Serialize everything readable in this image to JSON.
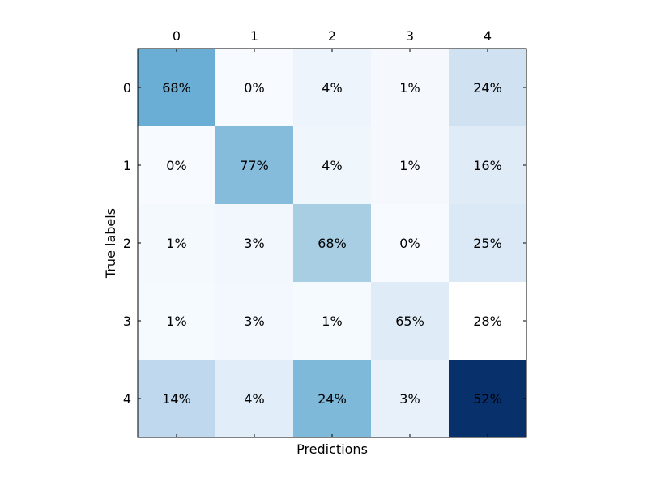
{
  "chart_data": {
    "type": "heatmap",
    "title": "",
    "xlabel": "Predictions",
    "ylabel": "True labels",
    "x_categories": [
      "0",
      "1",
      "2",
      "3",
      "4"
    ],
    "y_categories": [
      "0",
      "1",
      "2",
      "3",
      "4"
    ],
    "x_tick_position": "top",
    "colormap": "Blues",
    "values": [
      [
        68,
        0,
        4,
        1,
        24
      ],
      [
        0,
        77,
        4,
        1,
        16
      ],
      [
        1,
        3,
        68,
        0,
        25
      ],
      [
        1,
        3,
        1,
        65,
        28
      ],
      [
        14,
        4,
        24,
        3,
        52
      ]
    ],
    "cell_labels": [
      [
        "68%",
        "0%",
        "4%",
        "1%",
        "24%"
      ],
      [
        "0%",
        "77%",
        "4%",
        "1%",
        "16%"
      ],
      [
        "1%",
        "3%",
        "68%",
        "0%",
        "25%"
      ],
      [
        "1%",
        "3%",
        "1%",
        "65%",
        "28%"
      ],
      [
        "14%",
        "4%",
        "24%",
        "3%",
        "52%"
      ]
    ],
    "cell_colors": [
      [
        "#6aaed6",
        "#f7fbff",
        "#edf4fc",
        "#f5f9fe",
        "#d0e2f2"
      ],
      [
        "#f7fbff",
        "#85bcdc",
        "#eff6fc",
        "#f5f9fe",
        "#dfebf7"
      ],
      [
        "#f4f9fe",
        "#f2f7fd",
        "#a8cee4",
        "#f7fbff",
        "#dbe9f6"
      ],
      [
        "#f5fafe",
        "#f2f8fd",
        "#f5fafe",
        "#dfebf7",
        "#ffffff"
      ],
      [
        "#c0d8ed",
        "#e1edf8",
        "#7fb9da",
        "#e8f1fa",
        "#08306b"
      ]
    ],
    "label_color": "#000000",
    "grid": false
  }
}
